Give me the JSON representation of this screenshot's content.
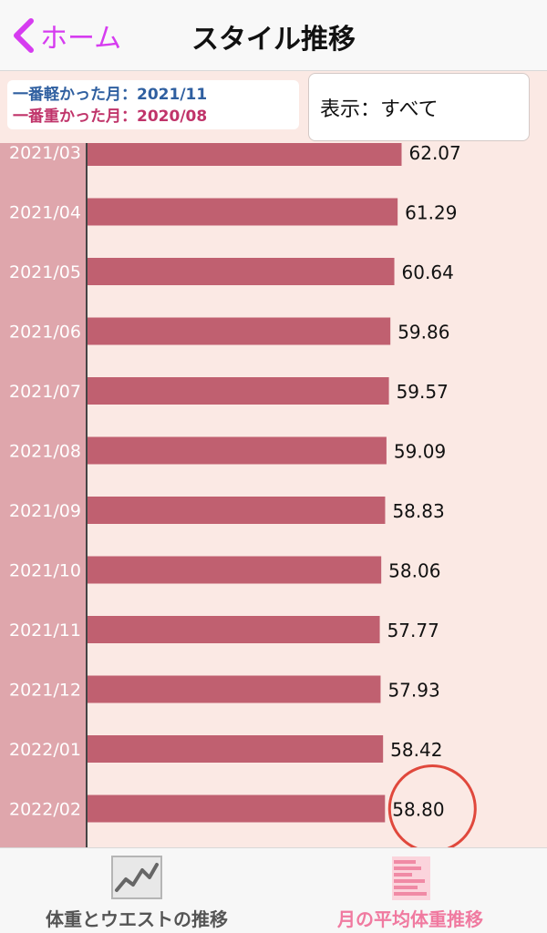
{
  "header": {
    "back_label": "ホーム",
    "title": "スタイル推移"
  },
  "info": {
    "lightest_month": "一番軽かった月：2021/11",
    "heaviest_month": "一番重かった月：2020/08"
  },
  "display_select": {
    "value": "表示：すべて"
  },
  "tabs": [
    {
      "label": "体重とウエストの推移",
      "icon": "line-chart-icon",
      "active": false
    },
    {
      "label": "月の平均体重推移",
      "icon": "bar-chart-icon",
      "active": true
    }
  ],
  "colors": {
    "bar": "#c06070",
    "label_strip": "#dfa6ac",
    "background": "#fbe9e4",
    "back_accent": "#d63cf0",
    "highlight_circle": "#e0483c",
    "active_tab": "#f07aa0"
  },
  "chart_data": {
    "type": "bar",
    "orientation": "horizontal",
    "categories": [
      "2021/03",
      "2021/04",
      "2021/05",
      "2021/06",
      "2021/07",
      "2021/08",
      "2021/09",
      "2021/10",
      "2021/11",
      "2021/12",
      "2022/01",
      "2022/02"
    ],
    "values": [
      62.07,
      61.29,
      60.64,
      59.86,
      59.57,
      59.09,
      58.83,
      58.06,
      57.77,
      57.93,
      58.42,
      58.8
    ],
    "value_labels": [
      "62.07",
      "61.29",
      "60.64",
      "59.86",
      "59.57",
      "59.09",
      "58.83",
      "58.06",
      "57.77",
      "57.93",
      "58.42",
      "58.80"
    ],
    "highlighted_category": "2022/02",
    "grid": false
  }
}
